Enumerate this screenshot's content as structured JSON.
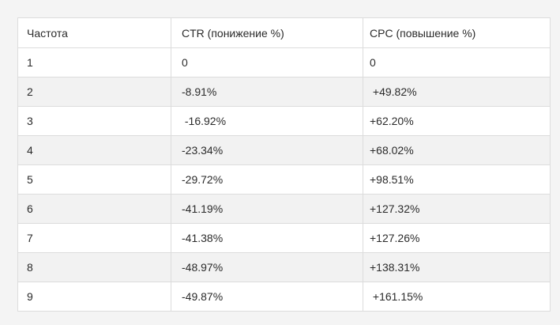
{
  "table": {
    "headers": [
      "Частота",
      "CTR (понижение %)",
      "CPC (повышение %)"
    ],
    "rows": [
      [
        "1",
        "0",
        "0"
      ],
      [
        "2",
        "-8.91%",
        " +49.82%"
      ],
      [
        "3",
        " -16.92%",
        "+62.20%"
      ],
      [
        "4",
        "-23.34%",
        "+68.02%"
      ],
      [
        "5",
        "-29.72%",
        "+98.51%"
      ],
      [
        "6",
        "-41.19%",
        "+127.32%"
      ],
      [
        "7",
        "-41.38%",
        "+127.26%"
      ],
      [
        "8",
        "-48.97%",
        "+138.31%"
      ],
      [
        "9",
        "-49.87%",
        " +161.15%"
      ]
    ]
  }
}
